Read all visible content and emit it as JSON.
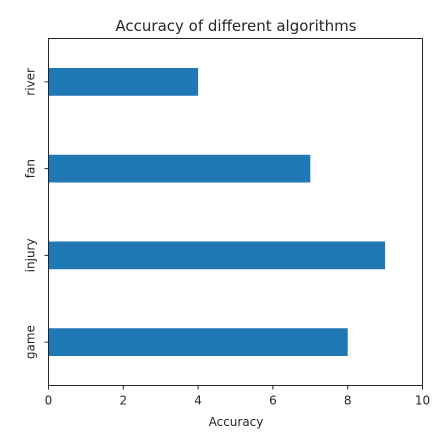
{
  "chart_data": {
    "type": "bar",
    "orientation": "horizontal",
    "title": "Accuracy of different algorithms",
    "xlabel": "Accuracy",
    "ylabel": "",
    "categories": [
      "river",
      "fan",
      "injury",
      "game"
    ],
    "values": [
      4,
      7,
      9,
      8
    ],
    "xlim": [
      0,
      10
    ],
    "xticks": [
      "0",
      "2",
      "4",
      "6",
      "8",
      "10"
    ],
    "grid": false,
    "bar_color": "#1f77b4"
  }
}
